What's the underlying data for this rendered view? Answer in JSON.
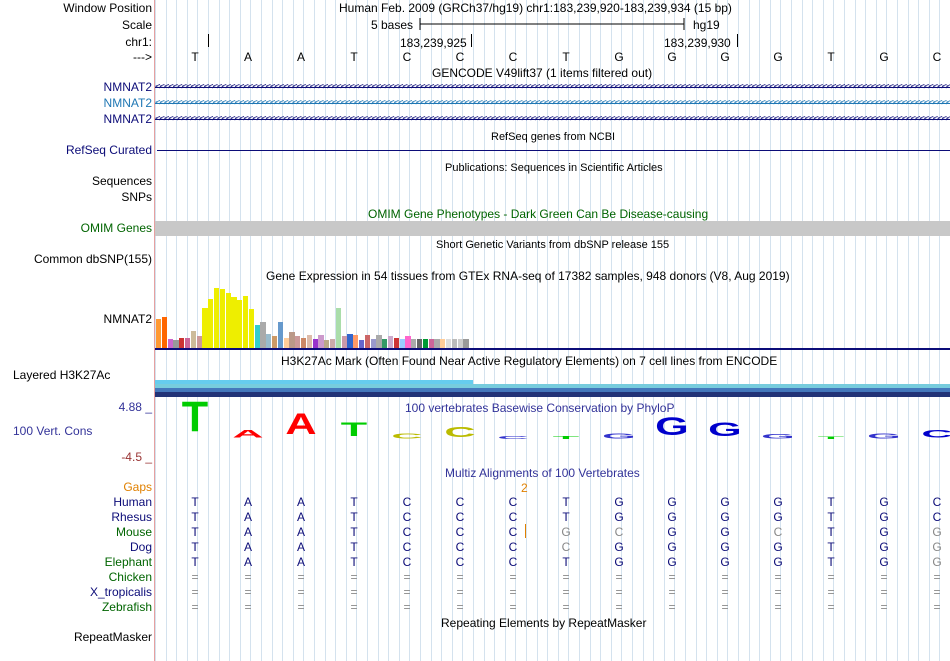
{
  "labels": {
    "window_position": "Window Position",
    "scale": "Scale",
    "chr": "chr1:",
    "arrow": "--->",
    "nmnat2_a": "NMNAT2",
    "nmnat2_b": "NMNAT2",
    "nmnat2_c": "NMNAT2",
    "refseq_curated": "RefSeq Curated",
    "sequences": "Sequences",
    "snps": "SNPs",
    "omim_genes": "OMIM Genes",
    "common_dbsnp": "Common dbSNP(155)",
    "gtex_nmnat2": "NMNAT2",
    "layered_h3k27ac": "Layered H3K27Ac",
    "cons_max": "4.88 _",
    "cons_label": "100 Vert. Cons",
    "cons_min": "-4.5 _",
    "gaps": "Gaps",
    "species": [
      "Human",
      "Rhesus",
      "Mouse",
      "Dog",
      "Elephant",
      "Chicken",
      "X_tropicalis",
      "Zebrafish"
    ],
    "repeatmasker": "RepeatMasker"
  },
  "header": {
    "position_text": "Human Feb. 2009 (GRCh37/hg19)   chr1:183,239,920-183,239,934 (15 bp)",
    "scale_text": "5 bases",
    "assembly": "hg19",
    "coord_1": "183,239,925",
    "coord_2": "183,239,930"
  },
  "bases": [
    "T",
    "A",
    "A",
    "T",
    "C",
    "C",
    "C",
    "T",
    "G",
    "G",
    "G",
    "G",
    "T",
    "G",
    "C"
  ],
  "tracks": {
    "gencode_title": "GENCODE V49lift37 (1 items filtered out)",
    "refseq_title": "RefSeq genes from NCBI",
    "pubs_title": "Publications: Sequences in Scientific Articles",
    "omim_title": "OMIM Gene Phenotypes - Dark Green Can Be Disease-causing",
    "dbsnp_title": "Short Genetic Variants from dbSNP release 155",
    "gtex_title": "Gene Expression in 54 tissues from GTEx RNA-seq of 17382 samples, 948 donors (V8, Aug 2019)",
    "h3k27ac_title": "H3K27Ac Mark (Often Found Near Active Regulatory Elements) on 7 cell lines from ENCODE",
    "phylop_title": "100 vertebrates Basewise Conservation by PhyloP",
    "multiz_title": "Multiz Alignments of 100 Vertebrates",
    "gap_count": "2",
    "repeat_title": "Repeating Elements by RepeatMasker"
  },
  "gtex_levels": [
    0.44,
    0.48,
    0.14,
    0.12,
    0.16,
    0.16,
    0.26,
    0.18,
    0.62,
    0.76,
    0.92,
    0.9,
    0.84,
    0.78,
    0.74,
    0.8,
    0.6,
    0.36,
    0.4,
    0.22,
    0.18,
    0.4,
    0.16,
    0.24,
    0.18,
    0.16,
    0.2,
    0.14,
    0.2,
    0.12,
    0.14,
    0.62,
    0.18,
    0.22,
    0.2,
    0.12,
    0.2,
    0.14,
    0.2,
    0.14,
    0.18,
    0.16,
    0.14,
    0.18,
    0.14,
    0.14,
    0.14,
    0.14,
    0.14,
    0.14,
    0.14,
    0.14,
    0.14,
    0.14
  ],
  "gtex_colors": [
    "#ff9933",
    "#ff6600",
    "#cc66cc",
    "#999999",
    "#cc3333",
    "#cc6699",
    "#ccbb99",
    "#cc9999",
    "#eeee00",
    "#eeee00",
    "#eeee00",
    "#eeee00",
    "#eeee00",
    "#eeee00",
    "#eeee00",
    "#eeee00",
    "#eeee00",
    "#33cccc",
    "#aaaaaa",
    "#99bbcc",
    "#cc9966",
    "#6699cc",
    "#ffcc99",
    "#bb9988",
    "#cc9999",
    "#cc8866",
    "#ddbbaa",
    "#9933cc",
    "#cc99cc",
    "#bbaa88",
    "#ccaaaa",
    "#aaddaa",
    "#cc99aa",
    "#3366cc",
    "#ff9966",
    "#6666cc",
    "#cc6666",
    "#9999cc",
    "#aaaaaa",
    "#339966",
    "#ccaacc",
    "#cc3333",
    "#99ccff",
    "#ff66cc",
    "#aaaaaa",
    "#666666",
    "#009933",
    "#cc6699",
    "#aaaaaa",
    "#ffcc99",
    "#dddddd",
    "#bbbbbb",
    "#cccccc",
    "#999999"
  ],
  "phylop_scores": [
    {
      "base": "T",
      "value": 3.5,
      "color": "#00cc00"
    },
    {
      "base": "A",
      "value": 0.9,
      "color": "#ff0000"
    },
    {
      "base": "A",
      "value": 2.4,
      "color": "#ff0000"
    },
    {
      "base": "T",
      "value": 1.6,
      "color": "#00cc00"
    },
    {
      "base": "C",
      "value": 0.6,
      "color": "#bbbb00"
    },
    {
      "base": "C",
      "value": 1.2,
      "color": "#bbbb00"
    },
    {
      "base": "C",
      "value": 0.4,
      "color": "#3333cc"
    },
    {
      "base": "T",
      "value": 0.4,
      "color": "#00cc00"
    },
    {
      "base": "G",
      "value": 0.6,
      "color": "#3333cc"
    },
    {
      "base": "G",
      "value": 2.0,
      "color": "#0000cc"
    },
    {
      "base": "G",
      "value": 1.6,
      "color": "#0000cc"
    },
    {
      "base": "G",
      "value": 0.5,
      "color": "#3333cc"
    },
    {
      "base": "T",
      "value": 0.1,
      "color": "#00cc00"
    },
    {
      "base": "G",
      "value": 0.6,
      "color": "#3333cc"
    },
    {
      "base": "C",
      "value": 0.9,
      "color": "#0000cc"
    }
  ],
  "alignments": [
    {
      "species": "Human",
      "bases": [
        "T",
        "A",
        "A",
        "T",
        "C",
        "C",
        "C",
        "T",
        "G",
        "G",
        "G",
        "G",
        "T",
        "G",
        "C"
      ],
      "gray": []
    },
    {
      "species": "Rhesus",
      "bases": [
        "T",
        "A",
        "A",
        "T",
        "C",
        "C",
        "C",
        "T",
        "G",
        "G",
        "G",
        "G",
        "T",
        "G",
        "C"
      ],
      "gray": []
    },
    {
      "species": "Mouse",
      "bases": [
        "T",
        "A",
        "A",
        "T",
        "C",
        "C",
        "C",
        "G",
        "C",
        "G",
        "G",
        "C",
        "T",
        "G",
        "G"
      ],
      "gray": [
        7,
        8,
        11,
        14
      ]
    },
    {
      "species": "Dog",
      "bases": [
        "T",
        "A",
        "A",
        "T",
        "C",
        "C",
        "C",
        "C",
        "G",
        "G",
        "G",
        "G",
        "T",
        "G",
        "G"
      ],
      "gray": [
        7,
        14
      ]
    },
    {
      "species": "Elephant",
      "bases": [
        "T",
        "A",
        "A",
        "T",
        "C",
        "C",
        "C",
        "T",
        "G",
        "G",
        "G",
        "G",
        "T",
        "G",
        "G"
      ],
      "gray": [
        14
      ]
    },
    {
      "species": "Chicken",
      "bases": [
        "=",
        "=",
        "=",
        "=",
        "=",
        "=",
        "=",
        "=",
        "=",
        "=",
        "=",
        "=",
        "=",
        "=",
        "="
      ],
      "gray": []
    },
    {
      "species": "X_tropicalis",
      "bases": [
        "=",
        "=",
        "=",
        "=",
        "=",
        "=",
        "=",
        "=",
        "=",
        "=",
        "=",
        "=",
        "=",
        "=",
        "="
      ],
      "gray": []
    },
    {
      "species": "Zebrafish",
      "bases": [
        "=",
        "=",
        "=",
        "=",
        "=",
        "=",
        "=",
        "=",
        "=",
        "=",
        "=",
        "=",
        "=",
        "=",
        "="
      ],
      "gray": []
    }
  ],
  "colors": {
    "gene_dark": "#0c0c78",
    "gene_teal": "#1f77b4",
    "omim": "#006400",
    "phylop": "#333399",
    "gaps": "#e08000",
    "species_green": "#006400",
    "species_blue": "#0c0c78"
  }
}
